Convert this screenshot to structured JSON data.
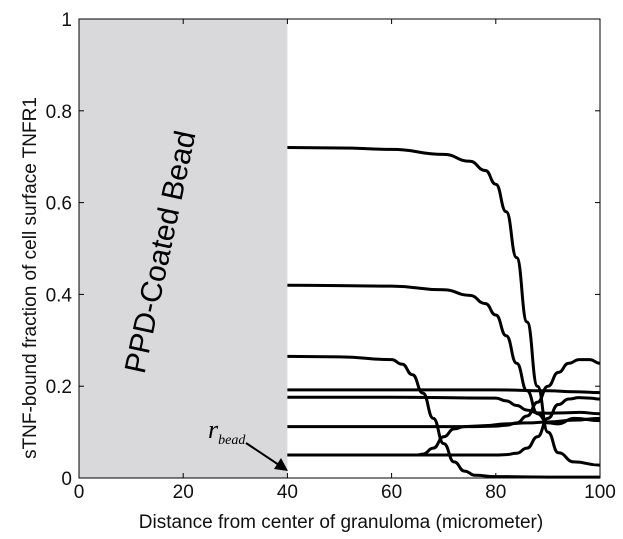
{
  "chart_data": {
    "type": "line",
    "title": "",
    "xlabel": "Distance from center of granuloma (micrometer)",
    "ylabel": "sTNF-bound fraction of cell surface TNFR1",
    "xlim": [
      0,
      100
    ],
    "ylim": [
      0,
      1
    ],
    "x_ticks": [
      "0",
      "20",
      "40",
      "60",
      "80",
      "100"
    ],
    "y_ticks": [
      "0",
      "0.2",
      "0.4",
      "0.6",
      "0.8",
      "1"
    ],
    "grid": false,
    "legend": "none",
    "shaded_region": {
      "x_from": 0,
      "x_to": 40,
      "label": "PPD-Coated Bead",
      "color": "#d9d9db"
    },
    "annotation": {
      "text": "r",
      "subscript": "bead",
      "points_to_x": 40,
      "points_to_y": 0.05
    },
    "line_color": "#000000",
    "series": [
      {
        "x": [
          40,
          50,
          60,
          70,
          75,
          78,
          80,
          82,
          84,
          86,
          88,
          90,
          92,
          95,
          100
        ],
        "y": [
          0.72,
          0.719,
          0.716,
          0.705,
          0.69,
          0.67,
          0.64,
          0.58,
          0.48,
          0.34,
          0.2,
          0.1,
          0.055,
          0.035,
          0.028
        ]
      },
      {
        "x": [
          40,
          60,
          70,
          75,
          78,
          80,
          82,
          84,
          86,
          88,
          90,
          92,
          95,
          100
        ],
        "y": [
          0.42,
          0.418,
          0.41,
          0.398,
          0.38,
          0.355,
          0.31,
          0.25,
          0.19,
          0.14,
          0.12,
          0.118,
          0.13,
          0.125
        ]
      },
      {
        "x": [
          40,
          50,
          60,
          62,
          64,
          66,
          68,
          70,
          72,
          74,
          76,
          80,
          90,
          100
        ],
        "y": [
          0.265,
          0.264,
          0.258,
          0.248,
          0.225,
          0.185,
          0.13,
          0.075,
          0.035,
          0.015,
          0.006,
          0.003,
          0.002,
          0.002
        ]
      },
      {
        "x": [
          40,
          60,
          80,
          90,
          95,
          100
        ],
        "y": [
          0.192,
          0.192,
          0.192,
          0.19,
          0.188,
          0.186
        ]
      },
      {
        "x": [
          40,
          60,
          80,
          82,
          84,
          86,
          88,
          90,
          93,
          96,
          100
        ],
        "y": [
          0.176,
          0.176,
          0.174,
          0.168,
          0.158,
          0.148,
          0.142,
          0.141,
          0.142,
          0.143,
          0.14
        ]
      },
      {
        "x": [
          40,
          50,
          60,
          65,
          66,
          68,
          70,
          72,
          74,
          76,
          78,
          82,
          86,
          90,
          95,
          100
        ],
        "y": [
          0.05,
          0.05,
          0.05,
          0.05,
          0.052,
          0.065,
          0.09,
          0.107,
          0.112,
          0.113,
          0.114,
          0.118,
          0.12,
          0.122,
          0.126,
          0.13
        ]
      },
      {
        "x": [
          40,
          50,
          60,
          70,
          76,
          80,
          82,
          84,
          86,
          88,
          90,
          92,
          94,
          96,
          98,
          100
        ],
        "y": [
          0.112,
          0.112,
          0.112,
          0.112,
          0.112,
          0.113,
          0.115,
          0.12,
          0.135,
          0.165,
          0.2,
          0.23,
          0.25,
          0.258,
          0.258,
          0.25
        ]
      },
      {
        "x": [
          40,
          60,
          80,
          82,
          84,
          86,
          88,
          90,
          92,
          94,
          96,
          98,
          100
        ],
        "y": [
          0.05,
          0.05,
          0.05,
          0.051,
          0.054,
          0.065,
          0.09,
          0.13,
          0.16,
          0.172,
          0.175,
          0.174,
          0.172
        ]
      }
    ]
  }
}
